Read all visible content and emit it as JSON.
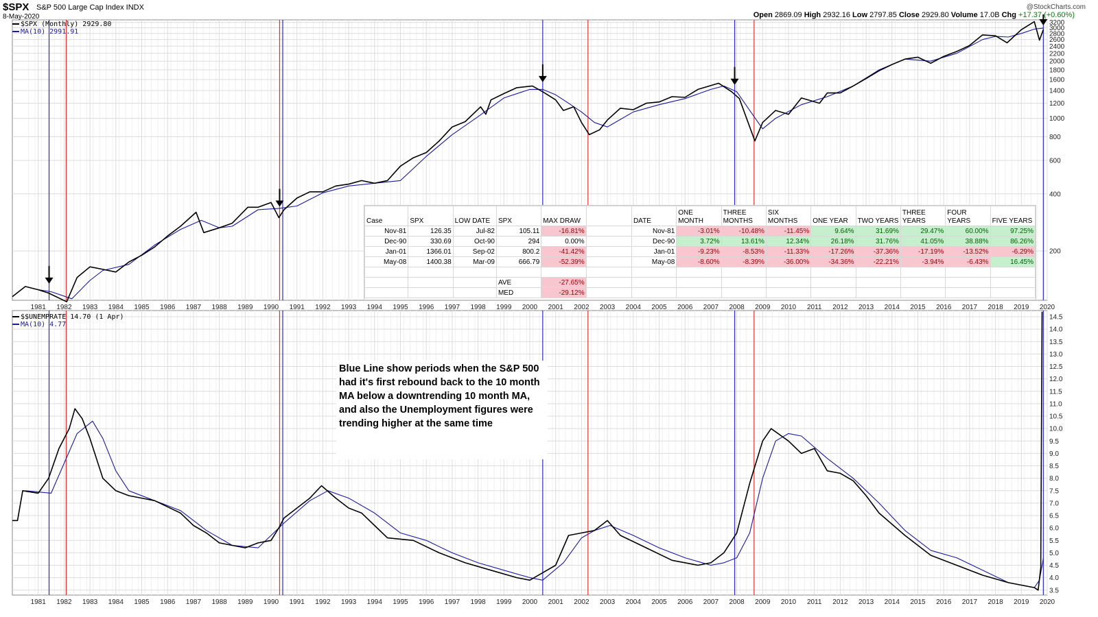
{
  "header": {
    "ticker": "$SPX",
    "name": "S&P 500 Large Cap Index INDX",
    "date": "8-May-2020",
    "watermark": "@StockCharts.com",
    "open_label": "Open",
    "open": "2869.09",
    "high_label": "High",
    "high": "2932.16",
    "low_label": "Low",
    "low": "2797.85",
    "close_label": "Close",
    "close": "2929.80",
    "volume_label": "Volume",
    "volume": "17.0B",
    "chg_label": "Chg",
    "chg": "+17.37 (+0.60%)"
  },
  "legend_top": {
    "series": "$SPX (Monthly) 2929.80",
    "ma": "MA(10) 2991.91"
  },
  "legend_bottom": {
    "series": "$$UNEMPRATE 14.70 (1 Apr)",
    "ma": "MA(10) 4.77"
  },
  "colors": {
    "series": "#000000",
    "ma": "#1a1aa0",
    "blue_line": "#2a2ad0",
    "red_line": "#e03030",
    "grid": "#dcdcdc"
  },
  "table": {
    "left_headers": [
      "Case",
      "SPX",
      "LOW DATE",
      "SPX",
      "MAX DRAW"
    ],
    "right_headers": [
      "DATE",
      "ONE MONTH",
      "THREE MONTHS",
      "SIX MONTHS",
      "ONE YEAR",
      "TWO YEARS",
      "THREE YEARS",
      "FOUR YEARS",
      "FIVE YEARS"
    ],
    "rows": [
      {
        "case": "Nov-81",
        "spx": "126.35",
        "low_date": "Jul-82",
        "low_spx": "105.11",
        "max_draw": "-16.81%",
        "date": "Nov-81",
        "r": [
          "-3.01%",
          "-10.48%",
          "-11.45%",
          "9.64%",
          "31.69%",
          "29.47%",
          "60.00%",
          "97.25%"
        ]
      },
      {
        "case": "Dec-90",
        "spx": "330.69",
        "low_date": "Oct-90",
        "low_spx": "294",
        "max_draw": "0.00%",
        "date": "Dec-90",
        "r": [
          "3.72%",
          "13.61%",
          "12.34%",
          "26.18%",
          "31.76%",
          "41.05%",
          "38.88%",
          "86.26%"
        ]
      },
      {
        "case": "Jan-01",
        "spx": "1366.01",
        "low_date": "Sep-02",
        "low_spx": "800.2",
        "max_draw": "-41.42%",
        "date": "Jan-01",
        "r": [
          "-9.23%",
          "-8.53%",
          "-11.33%",
          "-17.26%",
          "-37.36%",
          "-17.19%",
          "-13.52%",
          "-6.29%"
        ]
      },
      {
        "case": "May-08",
        "spx": "1400.38",
        "low_date": "Mar-09",
        "low_spx": "666.79",
        "max_draw": "-52.39%",
        "date": "May-08",
        "r": [
          "-8.60%",
          "-8.39%",
          "-36.00%",
          "-34.36%",
          "-22.21%",
          "-3.94%",
          "-6.43%",
          "16.45%"
        ]
      }
    ],
    "ave_label": "AVE",
    "ave": "-27.65%",
    "med_label": "MED",
    "med": "-29.12%"
  },
  "note": "Blue Line show periods when the S&P 500 had it's first rebound back to the 10 month MA below a downtrending 10 month MA, and also the Unemployment figures were trending higher at the same time",
  "chart_data": [
    {
      "type": "line",
      "title": "$SPX S&P 500 Large Cap Index INDX",
      "scale": "log",
      "yticks": [
        200,
        400,
        600,
        800,
        1000,
        1200,
        1400,
        1600,
        1800,
        2000,
        2200,
        2400,
        2600,
        2800,
        3000,
        3200
      ],
      "x_ticks": [
        "1981",
        "1982",
        "1983",
        "1984",
        "1985",
        "1986",
        "1987",
        "1988",
        "1989",
        "1990",
        "1991",
        "1992",
        "1993",
        "1994",
        "1995",
        "1996",
        "1997",
        "1998",
        "1999",
        "2000",
        "2001",
        "2002",
        "2003",
        "2004",
        "2005",
        "2006",
        "2007",
        "2008",
        "2009",
        "2010",
        "2011",
        "2012",
        "2013",
        "2014",
        "2015",
        "2016",
        "2017",
        "2018",
        "2019",
        "2020"
      ],
      "series": [
        {
          "name": "$SPX (Monthly)",
          "x": [
            1980.5,
            1981.0,
            1981.5,
            1981.9,
            1982.6,
            1983.0,
            1983.5,
            1984.0,
            1984.5,
            1985.0,
            1985.5,
            1986.0,
            1986.5,
            1987.0,
            1987.6,
            1987.9,
            1988.5,
            1989.0,
            1989.6,
            1990.0,
            1990.5,
            1990.8,
            1991.0,
            1991.5,
            1992.0,
            1992.5,
            1993.0,
            1993.5,
            1994.0,
            1994.5,
            1995.0,
            1995.5,
            1996.0,
            1996.5,
            1997.0,
            1997.5,
            1998.0,
            1998.6,
            1998.8,
            1999.0,
            1999.5,
            2000.0,
            2000.6,
            2001.0,
            2001.5,
            2001.8,
            2002.2,
            2002.5,
            2002.8,
            2003.2,
            2003.5,
            2004.0,
            2004.5,
            2005.0,
            2005.5,
            2006.0,
            2006.5,
            2007.0,
            2007.8,
            2008.3,
            2008.6,
            2009.0,
            2009.2,
            2009.5,
            2010.0,
            2010.5,
            2011.0,
            2011.7,
            2012.0,
            2012.5,
            2013.0,
            2013.5,
            2014.0,
            2014.5,
            2015.0,
            2015.5,
            2016.0,
            2016.5,
            2017.0,
            2017.5,
            2018.0,
            2018.5,
            2018.95,
            2019.5,
            2020.0,
            2020.2,
            2020.35
          ],
          "values": [
            115,
            130,
            125,
            120,
            108,
            145,
            165,
            160,
            155,
            175,
            190,
            210,
            240,
            270,
            320,
            250,
            265,
            280,
            340,
            340,
            360,
            300,
            330,
            380,
            410,
            410,
            440,
            450,
            470,
            455,
            470,
            560,
            620,
            660,
            760,
            900,
            960,
            1150,
            1050,
            1250,
            1350,
            1450,
            1480,
            1380,
            1250,
            1100,
            1150,
            950,
            820,
            870,
            980,
            1130,
            1110,
            1200,
            1220,
            1300,
            1290,
            1420,
            1530,
            1380,
            1270,
            900,
            760,
            950,
            1100,
            1050,
            1280,
            1200,
            1360,
            1360,
            1480,
            1620,
            1780,
            1920,
            2050,
            2100,
            1950,
            2120,
            2250,
            2420,
            2750,
            2720,
            2500,
            2930,
            3230,
            2580,
            2930
          ]
        },
        {
          "name": "MA(10)",
          "x": [
            1981.5,
            1982.0,
            1982.8,
            1983.5,
            1984.0,
            1985.0,
            1986.0,
            1987.0,
            1987.8,
            1988.5,
            1989.0,
            1990.0,
            1990.8,
            1991.5,
            1992.5,
            1993.5,
            1994.5,
            1995.5,
            1996.5,
            1997.5,
            1998.5,
            1999.5,
            2000.5,
            2001.0,
            2001.5,
            2002.0,
            2002.5,
            2003.0,
            2003.5,
            2004.5,
            2005.5,
            2006.5,
            2007.5,
            2008.0,
            2008.5,
            2009.0,
            2009.5,
            2010.0,
            2011.0,
            2012.0,
            2013.0,
            2014.0,
            2015.0,
            2016.0,
            2017.0,
            2018.0,
            2018.5,
            2019.0,
            2019.5,
            2020.0,
            2020.35
          ],
          "values": [
            125,
            122,
            112,
            140,
            158,
            170,
            215,
            260,
            290,
            265,
            270,
            330,
            335,
            345,
            405,
            440,
            455,
            470,
            630,
            820,
            1020,
            1280,
            1420,
            1420,
            1330,
            1200,
            1080,
            950,
            900,
            1080,
            1180,
            1270,
            1420,
            1480,
            1380,
            1100,
            880,
            1000,
            1180,
            1300,
            1480,
            1800,
            2050,
            2000,
            2200,
            2600,
            2700,
            2680,
            2800,
            2950,
            2990
          ]
        }
      ]
    },
    {
      "type": "line",
      "title": "$$UNEMPRATE",
      "ylim": [
        3.5,
        14.7
      ],
      "yticks": [
        3.5,
        4.0,
        4.5,
        5.0,
        5.5,
        6.0,
        6.5,
        7.0,
        7.5,
        8.0,
        8.5,
        9.0,
        9.5,
        10.0,
        10.5,
        11.0,
        11.5,
        12.0,
        12.5,
        13.0,
        13.5,
        14.0,
        14.5
      ],
      "series": [
        {
          "name": "$$UNEMPRATE",
          "x": [
            1980.5,
            1980.7,
            1980.9,
            1981.5,
            1981.9,
            1982.3,
            1982.7,
            1982.92,
            1983.2,
            1983.5,
            1984.0,
            1984.5,
            1985.0,
            1985.5,
            1986.0,
            1987.0,
            1987.5,
            1988.0,
            1988.5,
            1989.0,
            1989.5,
            1990.0,
            1990.5,
            1990.8,
            1991.0,
            1991.5,
            1992.0,
            1992.45,
            1993.0,
            1993.5,
            1994.0,
            1994.5,
            1995.0,
            1996.0,
            1997.0,
            1998.0,
            1999.0,
            2000.0,
            2000.5,
            2001.0,
            2001.5,
            2002.0,
            2002.5,
            2003.0,
            2003.5,
            2004.0,
            2005.0,
            2006.0,
            2007.0,
            2007.5,
            2008.0,
            2008.5,
            2009.0,
            2009.5,
            2009.83,
            2010.5,
            2011.0,
            2011.5,
            2012.0,
            2012.5,
            2013.0,
            2013.5,
            2014.0,
            2015.0,
            2016.0,
            2017.0,
            2018.0,
            2019.0,
            2019.5,
            2020.0,
            2020.15,
            2020.25,
            2020.3
          ],
          "values": [
            6.3,
            6.3,
            7.5,
            7.4,
            8.0,
            9.2,
            10.0,
            10.8,
            10.4,
            9.6,
            8.0,
            7.5,
            7.3,
            7.2,
            7.1,
            6.6,
            6.1,
            5.8,
            5.4,
            5.3,
            5.2,
            5.4,
            5.5,
            6.0,
            6.4,
            6.8,
            7.2,
            7.7,
            7.2,
            6.8,
            6.6,
            6.1,
            5.6,
            5.5,
            5.0,
            4.6,
            4.3,
            4.0,
            3.9,
            4.2,
            4.5,
            5.7,
            5.8,
            5.9,
            6.3,
            5.7,
            5.2,
            4.7,
            4.5,
            4.6,
            5.0,
            5.8,
            7.8,
            9.5,
            10.0,
            9.5,
            9.0,
            9.2,
            8.3,
            8.2,
            7.9,
            7.3,
            6.6,
            5.7,
            4.9,
            4.5,
            4.1,
            3.8,
            3.7,
            3.6,
            3.5,
            4.4,
            14.7
          ]
        },
        {
          "name": "MA(10)",
          "x": [
            1981.0,
            1982.0,
            1982.5,
            1983.0,
            1983.6,
            1984.0,
            1984.5,
            1985.0,
            1986.0,
            1987.0,
            1988.0,
            1989.0,
            1990.0,
            1991.0,
            1992.0,
            1992.7,
            1993.5,
            1994.5,
            1995.5,
            1996.5,
            1997.5,
            1998.5,
            1999.5,
            2000.5,
            2001.0,
            2001.8,
            2002.5,
            2003.0,
            2003.6,
            2004.5,
            2005.5,
            2006.5,
            2007.5,
            2008.0,
            2008.5,
            2009.0,
            2009.5,
            2010.0,
            2010.5,
            2011.0,
            2012.0,
            2013.0,
            2014.0,
            2015.0,
            2016.0,
            2017.0,
            2018.0,
            2019.0,
            2020.0,
            2020.2,
            2020.35
          ],
          "values": [
            7.5,
            7.4,
            8.6,
            9.8,
            10.3,
            9.6,
            8.3,
            7.5,
            7.1,
            6.7,
            5.9,
            5.3,
            5.2,
            6.2,
            7.1,
            7.5,
            7.2,
            6.6,
            5.8,
            5.5,
            5.0,
            4.6,
            4.3,
            4.0,
            3.9,
            4.6,
            5.6,
            5.9,
            6.1,
            5.7,
            5.2,
            4.8,
            4.5,
            4.6,
            4.8,
            5.8,
            8.0,
            9.5,
            9.8,
            9.7,
            8.8,
            8.0,
            7.0,
            5.9,
            5.1,
            4.8,
            4.3,
            3.8,
            3.6,
            3.9,
            4.77
          ]
        }
      ]
    }
  ],
  "vlines": {
    "blue": [
      1981.92,
      1990.95,
      2001.0,
      2008.42,
      2020.35
    ],
    "red": [
      1982.58,
      1990.83,
      2002.75,
      2009.17
    ]
  },
  "arrows": [
    1981.92,
    1990.83,
    2001.0,
    2008.42,
    2020.35
  ]
}
